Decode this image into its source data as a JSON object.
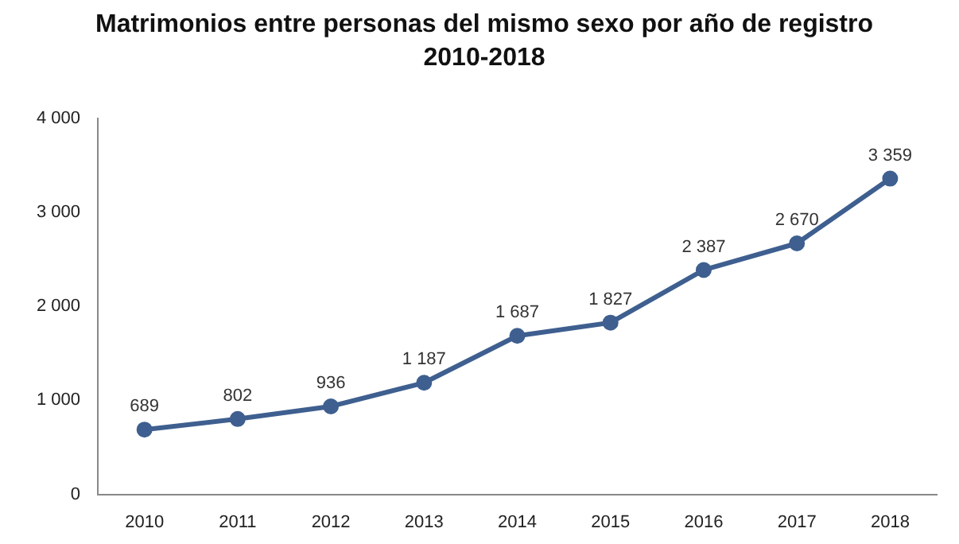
{
  "chart_data": {
    "type": "line",
    "title": "Matrimonios entre personas del mismo sexo por año de registro",
    "subtitle": "2010-2018",
    "categories": [
      "2010",
      "2011",
      "2012",
      "2013",
      "2014",
      "2015",
      "2016",
      "2017",
      "2018"
    ],
    "series": [
      {
        "color": "#3e5f8f",
        "values": [
          689,
          802,
          936,
          1187,
          1687,
          1827,
          2387,
          2670,
          3359
        ],
        "value_labels": [
          "689",
          "802",
          "936",
          "1 187",
          "1 687",
          "1 827",
          "2 387",
          "2 670",
          "3 359"
        ]
      }
    ],
    "ylim": [
      0,
      4000
    ],
    "yticks": [
      {
        "value": 0,
        "label": "0"
      },
      {
        "value": 1000,
        "label": "1 000"
      },
      {
        "value": 2000,
        "label": "2 000"
      },
      {
        "value": 3000,
        "label": "3 000"
      },
      {
        "value": 4000,
        "label": "4 000"
      }
    ],
    "grid": false,
    "legend": false,
    "marker": "circle",
    "line_style": "solid"
  }
}
